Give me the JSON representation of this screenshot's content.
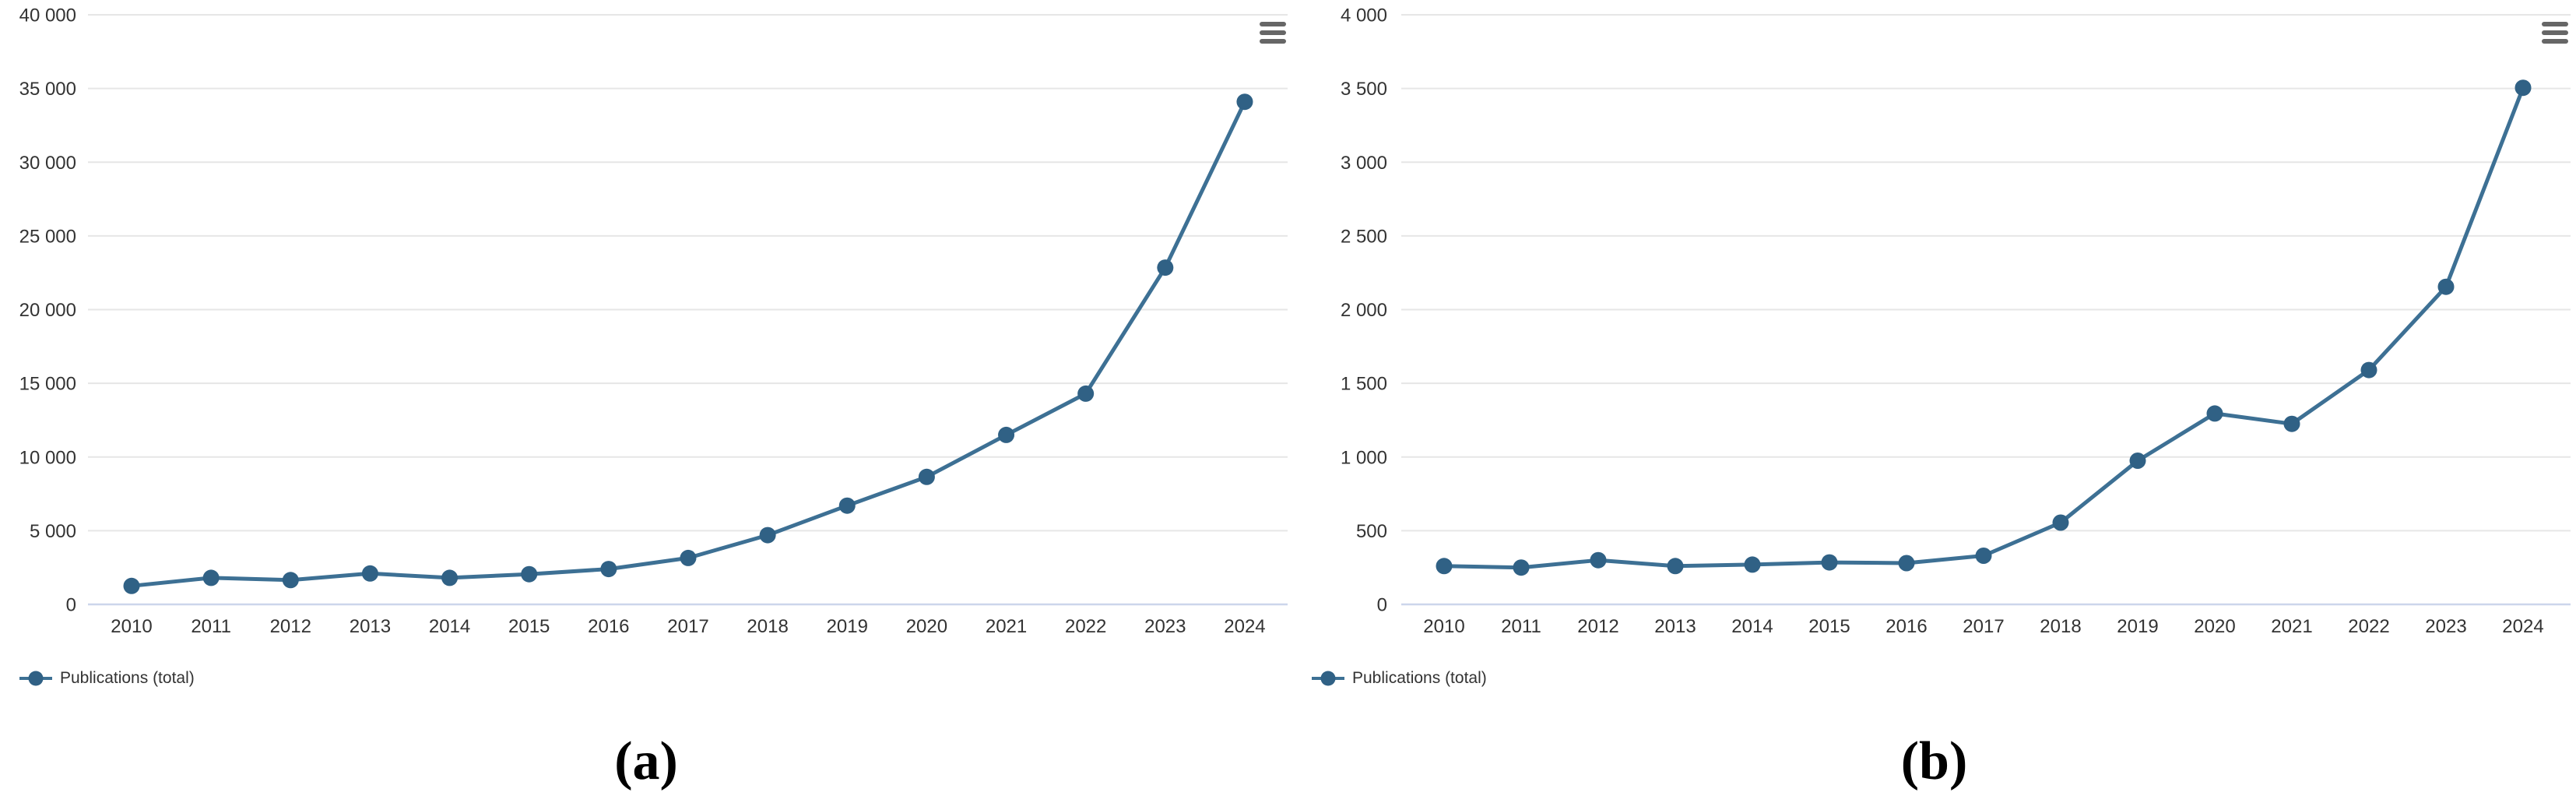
{
  "colors": {
    "background": "#ffffff",
    "series_line": "#3D7094",
    "series_marker": "#306185",
    "grid_line": "#e6e6e6",
    "axis_line": "#ccd6eb",
    "axis_label": "#333333",
    "legend_text": "#333333",
    "menu_icon": "#666666",
    "caption_text": "#000000"
  },
  "chart_data": [
    {
      "id": "a",
      "type": "line",
      "title": "",
      "caption": "(a)",
      "x": [
        2010,
        2011,
        2012,
        2013,
        2014,
        2015,
        2016,
        2017,
        2018,
        2019,
        2020,
        2021,
        2022,
        2023,
        2024
      ],
      "xtick_labels": [
        "2010",
        "2011",
        "2012",
        "2013",
        "2014",
        "2015",
        "2016",
        "2017",
        "2018",
        "2019",
        "2020",
        "2021",
        "2022",
        "2023",
        "2024"
      ],
      "series": [
        {
          "name": "Publications (total)",
          "values": [
            1250,
            1800,
            1650,
            2100,
            1800,
            2050,
            2400,
            3150,
            4700,
            6700,
            8650,
            11500,
            14300,
            22850,
            34100
          ]
        }
      ],
      "ylim": [
        0,
        40000
      ],
      "ytick_interval": 5000,
      "ytick_labels": [
        "0",
        "5 000",
        "10 000",
        "15 000",
        "20 000",
        "25 000",
        "30 000",
        "35 000",
        "40 000"
      ],
      "grid": true,
      "legend_position": "bottom-left",
      "menu_icon": "hamburger-menu-icon"
    },
    {
      "id": "b",
      "type": "line",
      "title": "",
      "caption": "(b)",
      "x": [
        2010,
        2011,
        2012,
        2013,
        2014,
        2015,
        2016,
        2017,
        2018,
        2019,
        2020,
        2021,
        2022,
        2023,
        2024
      ],
      "xtick_labels": [
        "2010",
        "2011",
        "2012",
        "2013",
        "2014",
        "2015",
        "2016",
        "2017",
        "2018",
        "2019",
        "2020",
        "2021",
        "2022",
        "2023",
        "2024"
      ],
      "series": [
        {
          "name": "Publications (total)",
          "values": [
            260,
            250,
            300,
            260,
            270,
            285,
            280,
            330,
            555,
            975,
            1295,
            1225,
            1590,
            2155,
            3505
          ]
        }
      ],
      "ylim": [
        0,
        4000
      ],
      "ytick_interval": 500,
      "ytick_labels": [
        "0",
        "500",
        "1 000",
        "1 500",
        "2 000",
        "2 500",
        "3 000",
        "3 500",
        "4 000"
      ],
      "grid": true,
      "legend_position": "bottom-left",
      "menu_icon": "hamburger-menu-icon"
    }
  ]
}
